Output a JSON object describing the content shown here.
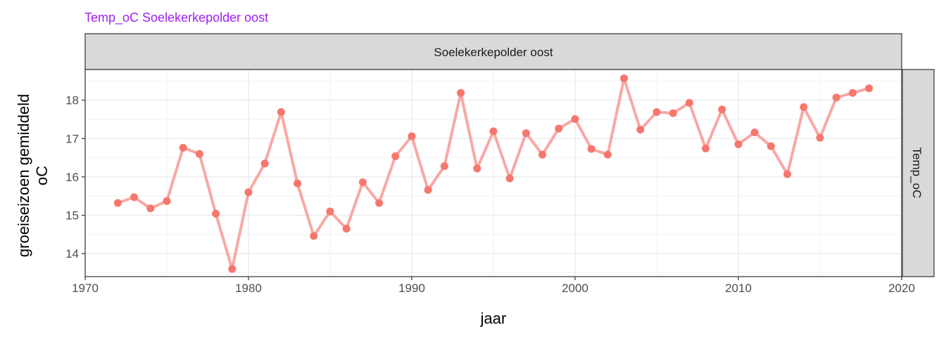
{
  "chart_data": {
    "type": "line",
    "title": "Temp_oC Soelekerkepolder oost",
    "title_color": "#a020f0",
    "facet_top_label": "Soelekerkepolder oost",
    "facet_right_label": "Temp_oC",
    "xlabel": "jaar",
    "ylabel_line1": "groeiseizoen gemiddeld",
    "ylabel_line2": "oC",
    "xlim": [
      1970,
      2020
    ],
    "ylim": [
      13.4,
      18.8
    ],
    "x_ticks": [
      1970,
      1980,
      1990,
      2000,
      2010,
      2020
    ],
    "y_ticks": [
      14,
      15,
      16,
      17,
      18
    ],
    "x_tick_labels": [
      "1970",
      "1980",
      "1990",
      "2000",
      "2010",
      "2020"
    ],
    "y_tick_labels": [
      "14",
      "15",
      "16",
      "17",
      "18"
    ],
    "grid": true,
    "line_color": "#f8a8a4",
    "point_color": "#f8766d",
    "series": [
      {
        "x": [
          1972,
          1973,
          1974,
          1975,
          1976,
          1977,
          1978,
          1979,
          1980,
          1981,
          1982,
          1983,
          1984,
          1985,
          1986,
          1987,
          1988,
          1989,
          1990,
          1991,
          1992,
          1993,
          1994,
          1995,
          1996,
          1997,
          1998,
          1999,
          2000,
          2001,
          2002,
          2003,
          2004,
          2005,
          2006,
          2007,
          2008,
          2009,
          2010,
          2011,
          2012,
          2013,
          2014,
          2015,
          2016,
          2017,
          2018
        ],
        "values": [
          15.32,
          15.47,
          15.18,
          15.37,
          16.76,
          16.6,
          15.04,
          13.6,
          15.6,
          16.35,
          17.69,
          15.83,
          14.46,
          15.1,
          14.65,
          15.86,
          15.32,
          16.54,
          17.06,
          15.66,
          16.28,
          18.19,
          16.22,
          17.19,
          15.96,
          17.14,
          16.58,
          17.26,
          17.51,
          16.73,
          16.58,
          18.57,
          17.23,
          17.69,
          17.66,
          17.93,
          16.74,
          17.76,
          16.85,
          17.16,
          16.8,
          16.07,
          17.82,
          17.02,
          18.07,
          18.19,
          18.31
        ]
      }
    ]
  }
}
